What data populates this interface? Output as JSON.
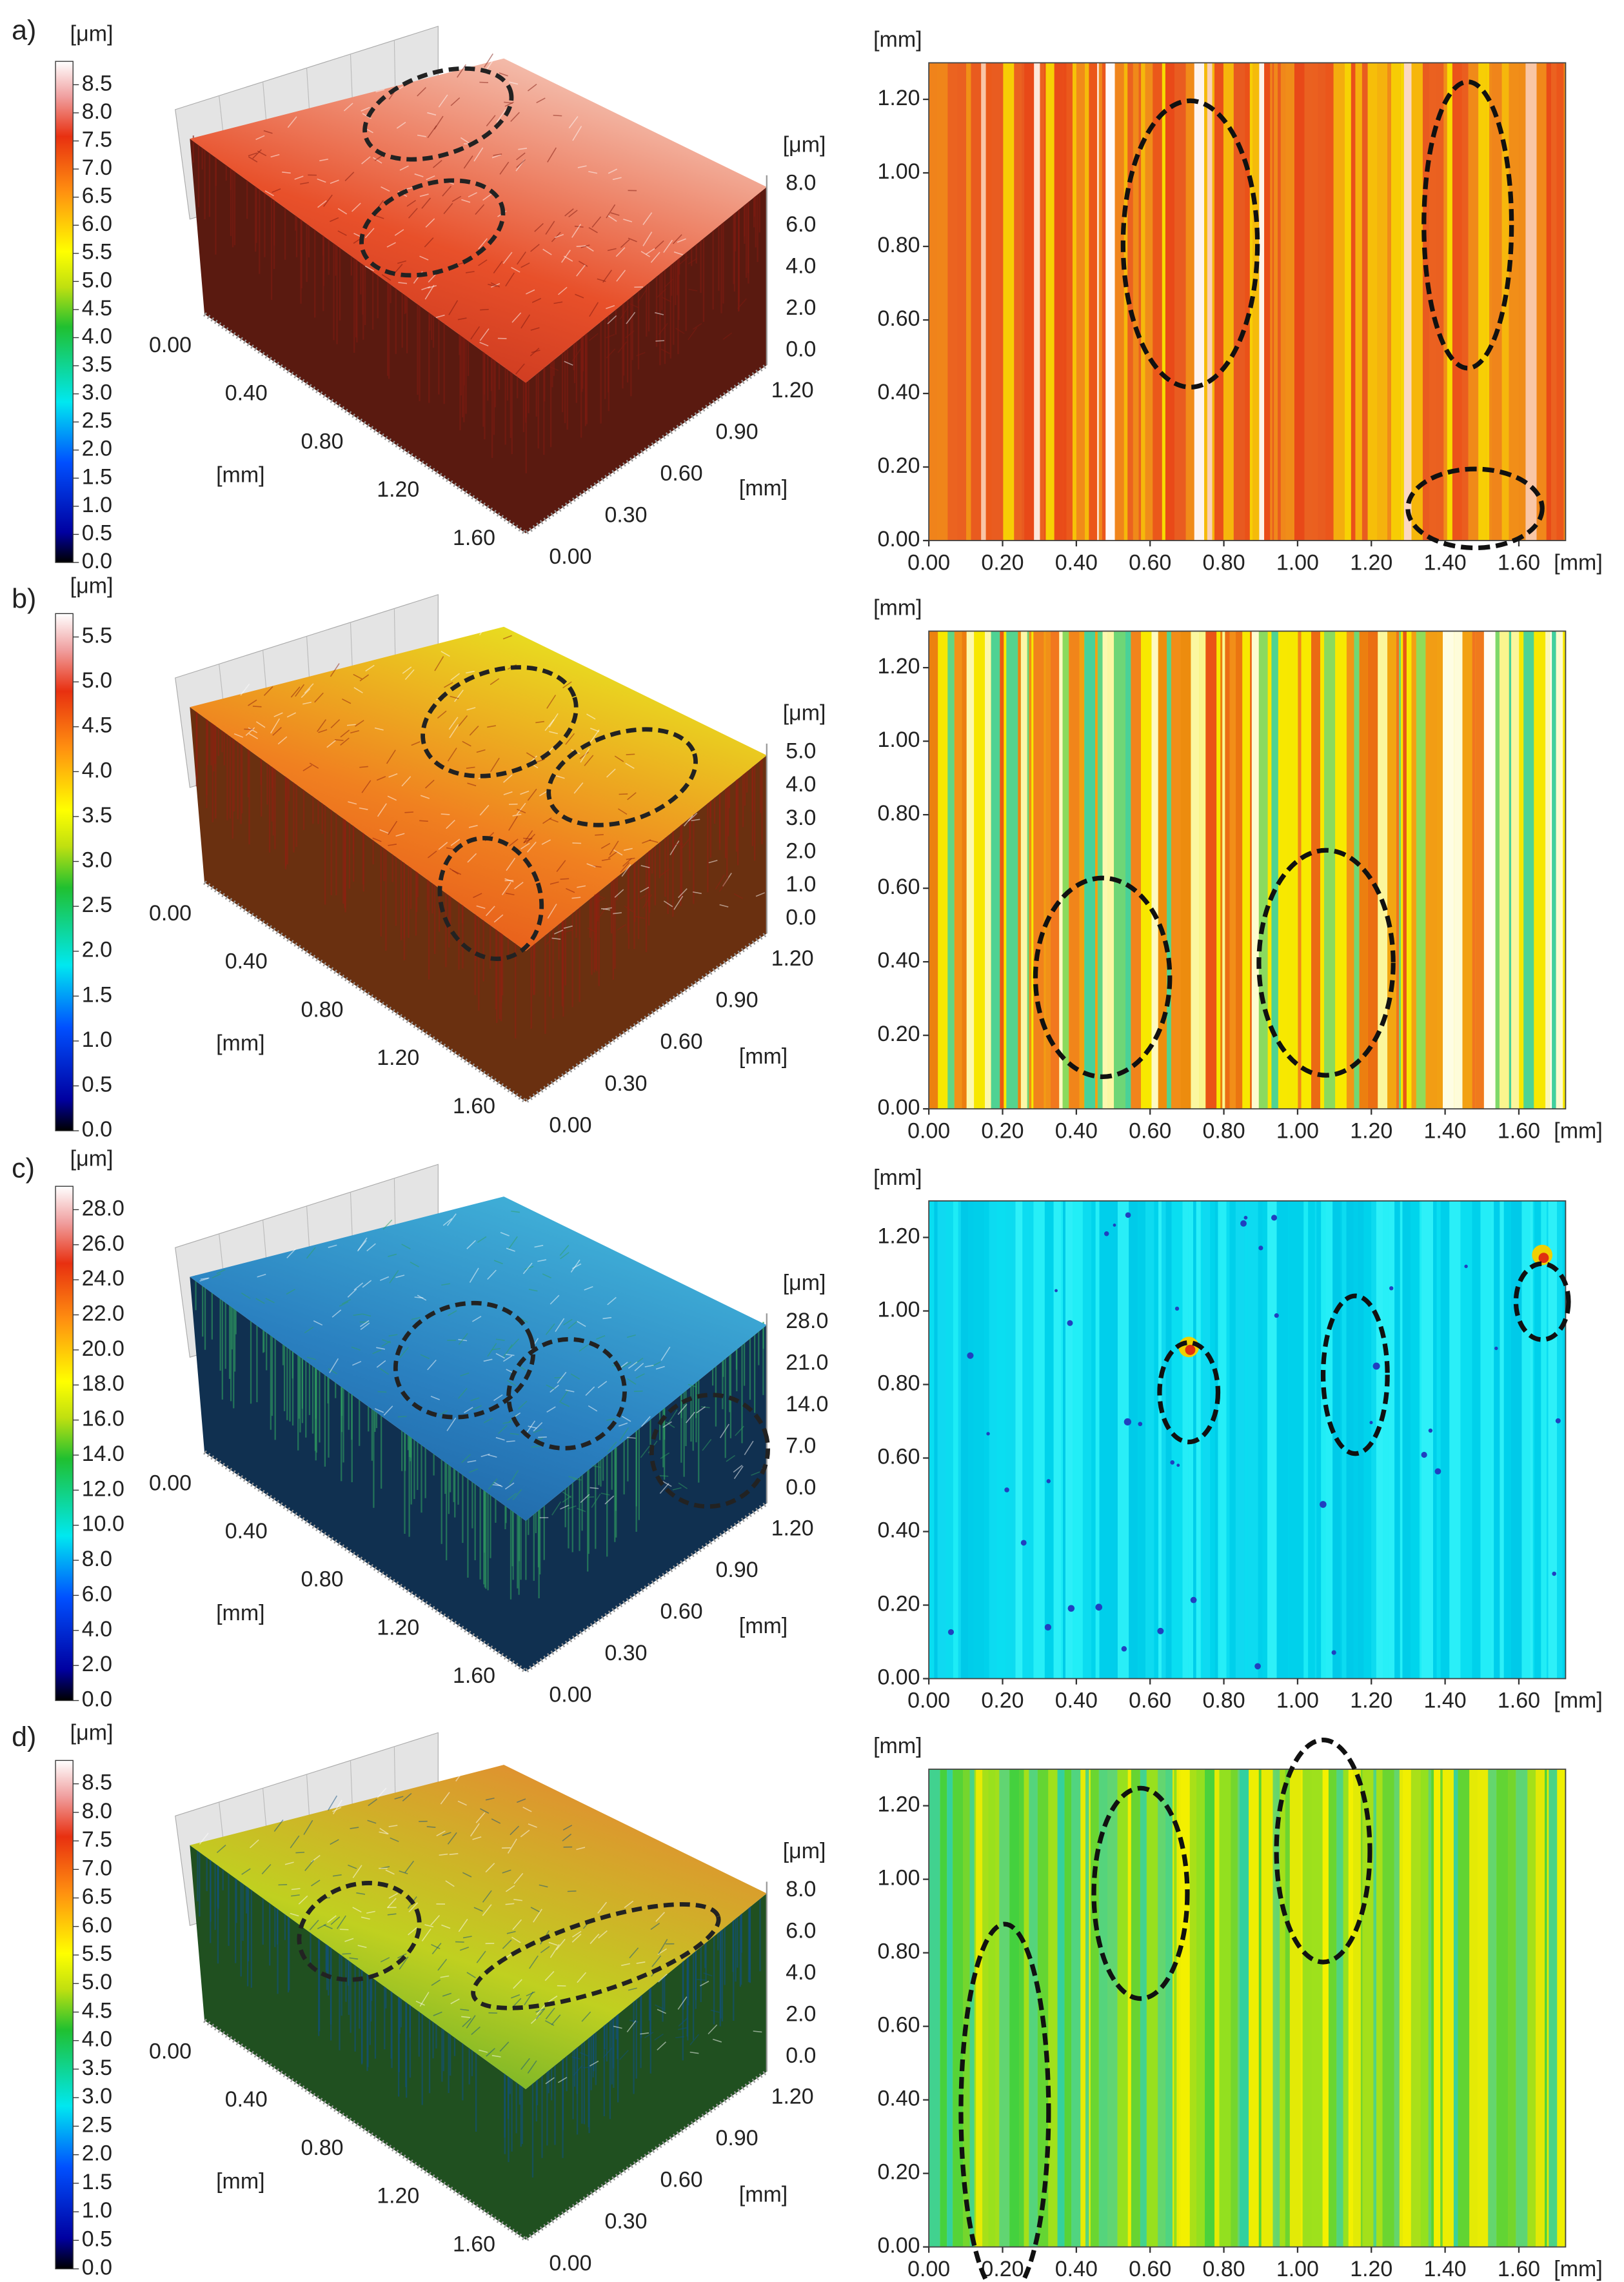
{
  "panels": [
    {
      "label": "a)",
      "colorbar": {
        "unit": "[μm]",
        "ticks": [
          "8.5",
          "8.0",
          "7.5",
          "7.0",
          "6.5",
          "6.0",
          "5.5",
          "5.0",
          "4.5",
          "4.0",
          "3.5",
          "3.0",
          "2.5",
          "2.0",
          "1.5",
          "1.0",
          "0.5",
          "0.0"
        ]
      },
      "surface": {
        "z_unit": "[μm]",
        "z_ticks": [
          "8.0",
          "6.0",
          "4.0",
          "2.0",
          "0.0"
        ],
        "x_unit": "[mm]",
        "x_ticks": [
          "0.00",
          "0.40",
          "0.80",
          "1.20",
          "1.60"
        ],
        "y_unit": "[mm]",
        "y_ticks": [
          "0.00",
          "0.30",
          "0.60",
          "0.90",
          "1.20"
        ]
      },
      "map": {
        "y_unit": "[mm]",
        "y_ticks": [
          "1.20",
          "1.00",
          "0.80",
          "0.60",
          "0.40",
          "0.20",
          "0.00"
        ],
        "x_unit": "[mm]",
        "x_ticks": [
          "0.00",
          "0.20",
          "0.40",
          "0.60",
          "0.80",
          "1.00",
          "1.20",
          "1.40",
          "1.60"
        ]
      }
    },
    {
      "label": "b)",
      "colorbar": {
        "unit": "[μm]",
        "ticks": [
          "5.5",
          "5.0",
          "4.5",
          "4.0",
          "3.5",
          "3.0",
          "2.5",
          "2.0",
          "1.5",
          "1.0",
          "0.5",
          "0.0"
        ]
      },
      "surface": {
        "z_unit": "[μm]",
        "z_ticks": [
          "5.0",
          "4.0",
          "3.0",
          "2.0",
          "1.0",
          "0.0"
        ],
        "x_unit": "[mm]",
        "x_ticks": [
          "0.00",
          "0.40",
          "0.80",
          "1.20",
          "1.60"
        ],
        "y_unit": "[mm]",
        "y_ticks": [
          "0.00",
          "0.30",
          "0.60",
          "0.90",
          "1.20"
        ]
      },
      "map": {
        "y_unit": "[mm]",
        "y_ticks": [
          "1.20",
          "1.00",
          "0.80",
          "0.60",
          "0.40",
          "0.20",
          "0.00"
        ],
        "x_unit": "[mm]",
        "x_ticks": [
          "0.00",
          "0.20",
          "0.40",
          "0.60",
          "0.80",
          "1.00",
          "1.20",
          "1.40",
          "1.60"
        ]
      }
    },
    {
      "label": "c)",
      "colorbar": {
        "unit": "[μm]",
        "ticks": [
          "28.0",
          "26.0",
          "24.0",
          "22.0",
          "20.0",
          "18.0",
          "16.0",
          "14.0",
          "12.0",
          "10.0",
          "8.0",
          "6.0",
          "4.0",
          "2.0",
          "0.0"
        ]
      },
      "surface": {
        "z_unit": "[μm]",
        "z_ticks": [
          "28.0",
          "21.0",
          "14.0",
          "7.0",
          "0.0"
        ],
        "x_unit": "[mm]",
        "x_ticks": [
          "0.00",
          "0.40",
          "0.80",
          "1.20",
          "1.60"
        ],
        "y_unit": "[mm]",
        "y_ticks": [
          "0.00",
          "0.30",
          "0.60",
          "0.90",
          "1.20"
        ]
      },
      "map": {
        "y_unit": "[mm]",
        "y_ticks": [
          "1.20",
          "1.00",
          "0.80",
          "0.60",
          "0.40",
          "0.20",
          "0.00"
        ],
        "x_unit": "[mm]",
        "x_ticks": [
          "0.00",
          "0.20",
          "0.40",
          "0.60",
          "0.80",
          "1.00",
          "1.20",
          "1.40",
          "1.60"
        ]
      }
    },
    {
      "label": "d)",
      "colorbar": {
        "unit": "[μm]",
        "ticks": [
          "8.5",
          "8.0",
          "7.5",
          "7.0",
          "6.5",
          "6.0",
          "5.5",
          "5.0",
          "4.5",
          "4.0",
          "3.5",
          "3.0",
          "2.5",
          "2.0",
          "1.5",
          "1.0",
          "0.5",
          "0.0"
        ]
      },
      "surface": {
        "z_unit": "[μm]",
        "z_ticks": [
          "8.0",
          "6.0",
          "4.0",
          "2.0",
          "0.0"
        ],
        "x_unit": "[mm]",
        "x_ticks": [
          "0.00",
          "0.40",
          "0.80",
          "1.20",
          "1.60"
        ],
        "y_unit": "[mm]",
        "y_ticks": [
          "0.00",
          "0.30",
          "0.60",
          "0.90",
          "1.20"
        ]
      },
      "map": {
        "y_unit": "[mm]",
        "y_ticks": [
          "1.20",
          "1.00",
          "0.80",
          "0.60",
          "0.40",
          "0.20",
          "0.00"
        ],
        "x_unit": "[mm]",
        "x_ticks": [
          "0.00",
          "0.20",
          "0.40",
          "0.60",
          "0.80",
          "1.00",
          "1.20",
          "1.40",
          "1.60"
        ]
      }
    }
  ]
}
